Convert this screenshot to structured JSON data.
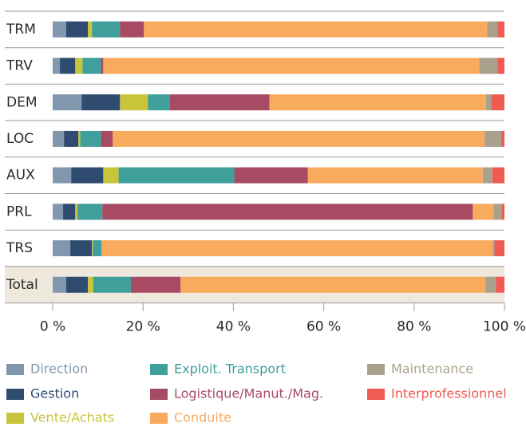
{
  "chart_data": {
    "type": "stacked_barh",
    "categories": [
      "TRM",
      "TRV",
      "DEM",
      "LOC",
      "AUX",
      "PRL",
      "TRS",
      "Total"
    ],
    "series": [
      {
        "name": "Direction",
        "color": "#8197ae",
        "values": [
          3.0,
          1.6,
          6.4,
          2.5,
          4.1,
          2.3,
          3.9,
          3.0
        ]
      },
      {
        "name": "Gestion",
        "color": "#2f4b70",
        "values": [
          4.8,
          3.4,
          8.5,
          3.2,
          7.1,
          2.7,
          4.8,
          4.8
        ]
      },
      {
        "name": "Vente/Achats",
        "color": "#c8c53b",
        "values": [
          0.9,
          1.6,
          6.2,
          0.4,
          3.4,
          0.5,
          0.2,
          1.2
        ]
      },
      {
        "name": "Exploit. Transport",
        "color": "#3e9f9b",
        "values": [
          6.2,
          4.1,
          4.8,
          4.6,
          25.6,
          5.5,
          1.9,
          8.3
        ]
      },
      {
        "name": "Logistique/Manut./Mag.",
        "color": "#a74b64",
        "values": [
          5.3,
          0.5,
          22.1,
          2.6,
          16.3,
          82.0,
          0,
          11.0
        ]
      },
      {
        "name": "Conduite",
        "color": "#f8aa5d",
        "values": [
          76.0,
          83.2,
          47.9,
          82.3,
          38.7,
          4.6,
          86.6,
          67.5
        ]
      },
      {
        "name": "Maintenance",
        "color": "#aaa18d",
        "values": [
          2.3,
          4.1,
          1.2,
          3.7,
          2.1,
          1.8,
          0.4,
          2.3
        ]
      },
      {
        "name": "Interprofessionnel",
        "color": "#ef5b51",
        "values": [
          1.5,
          1.5,
          2.9,
          0.7,
          2.7,
          0.6,
          2.2,
          1.9
        ]
      }
    ],
    "xlim": [
      0,
      100
    ],
    "xticks": [
      {
        "value": 0,
        "label": "0 %"
      },
      {
        "value": 20,
        "label": "20 %"
      },
      {
        "value": 40,
        "label": "40 %"
      },
      {
        "value": 60,
        "label": "60 %"
      },
      {
        "value": 80,
        "label": "80 %"
      },
      {
        "value": 100,
        "label": "100 %"
      }
    ]
  }
}
